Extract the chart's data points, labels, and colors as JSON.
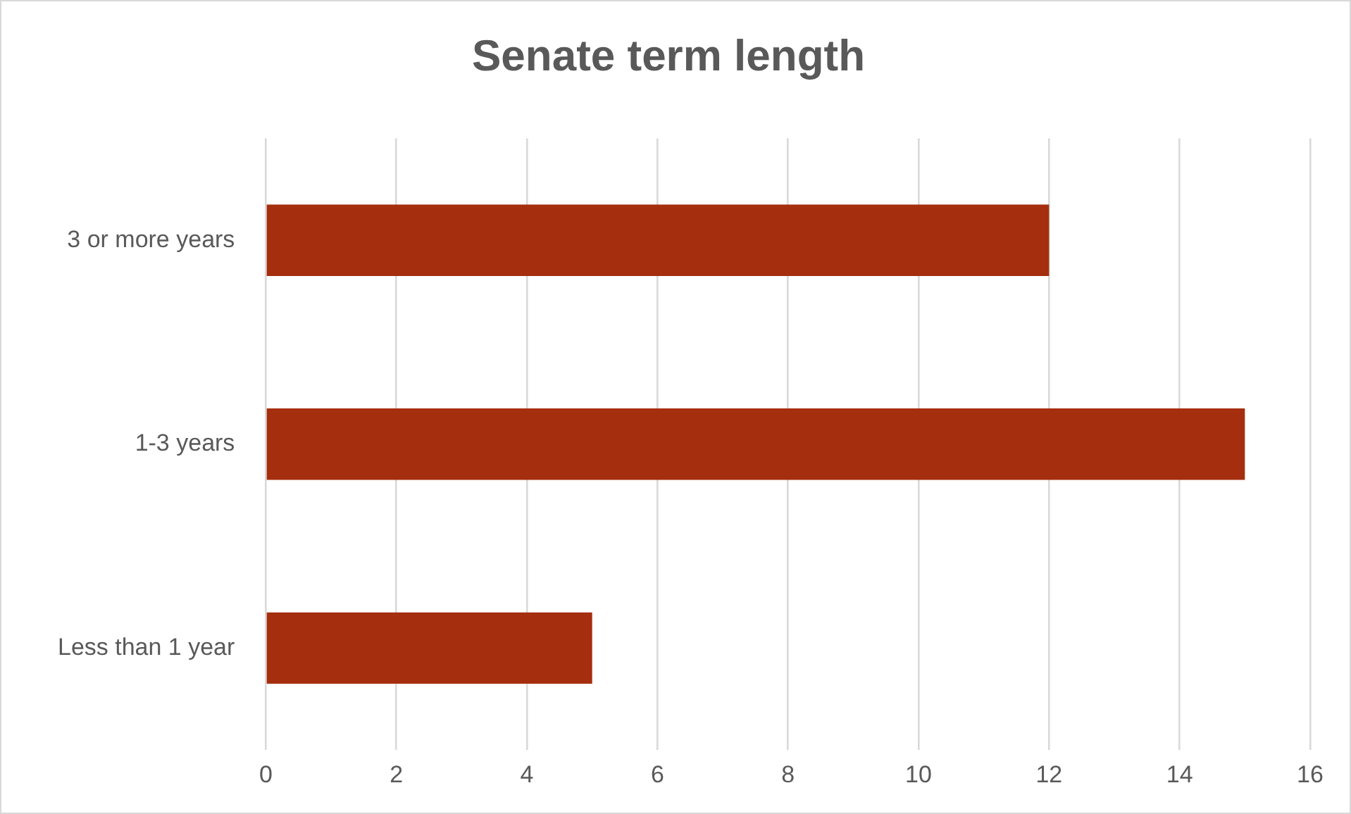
{
  "chart_data": {
    "type": "bar",
    "title": "Senate term length",
    "orientation": "horizontal",
    "categories": [
      "3 or more years",
      "1-3 years",
      "Less than 1 year"
    ],
    "values": [
      12,
      15,
      5
    ],
    "color": "#a52e0f",
    "xlim": [
      0,
      16
    ],
    "xticks": [
      0,
      2,
      4,
      6,
      8,
      10,
      12,
      14,
      16
    ],
    "grid": "x"
  }
}
